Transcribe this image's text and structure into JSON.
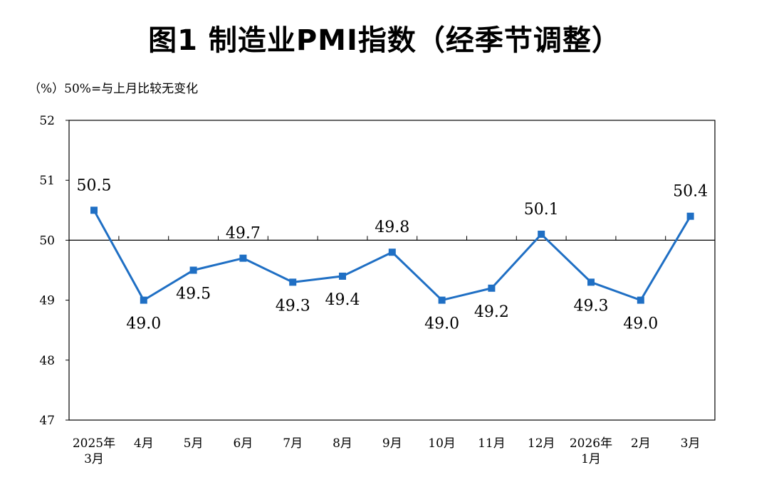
{
  "title": "图1  制造业PMI指数（经季节调整）",
  "unit_note": "（%）50%=与上月比较无变化",
  "colors": {
    "series": "#1f6fc4",
    "axis": "#000000",
    "reference_line": "#000000"
  },
  "chart_data": {
    "type": "line",
    "categories": [
      [
        "2025年",
        "3月"
      ],
      [
        "4月"
      ],
      [
        "5月"
      ],
      [
        "6月"
      ],
      [
        "7月"
      ],
      [
        "8月"
      ],
      [
        "9月"
      ],
      [
        "10月"
      ],
      [
        "11月"
      ],
      [
        "12月"
      ],
      [
        "2026年",
        "1月"
      ],
      [
        "2月"
      ],
      [
        "3月"
      ]
    ],
    "series": [
      {
        "values": [
          50.5,
          49.0,
          49.5,
          49.7,
          49.3,
          49.4,
          49.8,
          49.0,
          49.2,
          50.1,
          49.3,
          49.0,
          50.4
        ],
        "labels": [
          "50.5",
          "49.0",
          "49.5",
          "49.7",
          "49.3",
          "49.4",
          "49.8",
          "49.0",
          "49.2",
          "50.1",
          "49.3",
          "49.0",
          "50.4"
        ],
        "marker": "square"
      }
    ],
    "ylim": [
      47,
      52
    ],
    "yticks": [
      "47",
      "48",
      "49",
      "50",
      "51",
      "52"
    ],
    "reference_line": 50,
    "grid": false,
    "legend": "none"
  }
}
